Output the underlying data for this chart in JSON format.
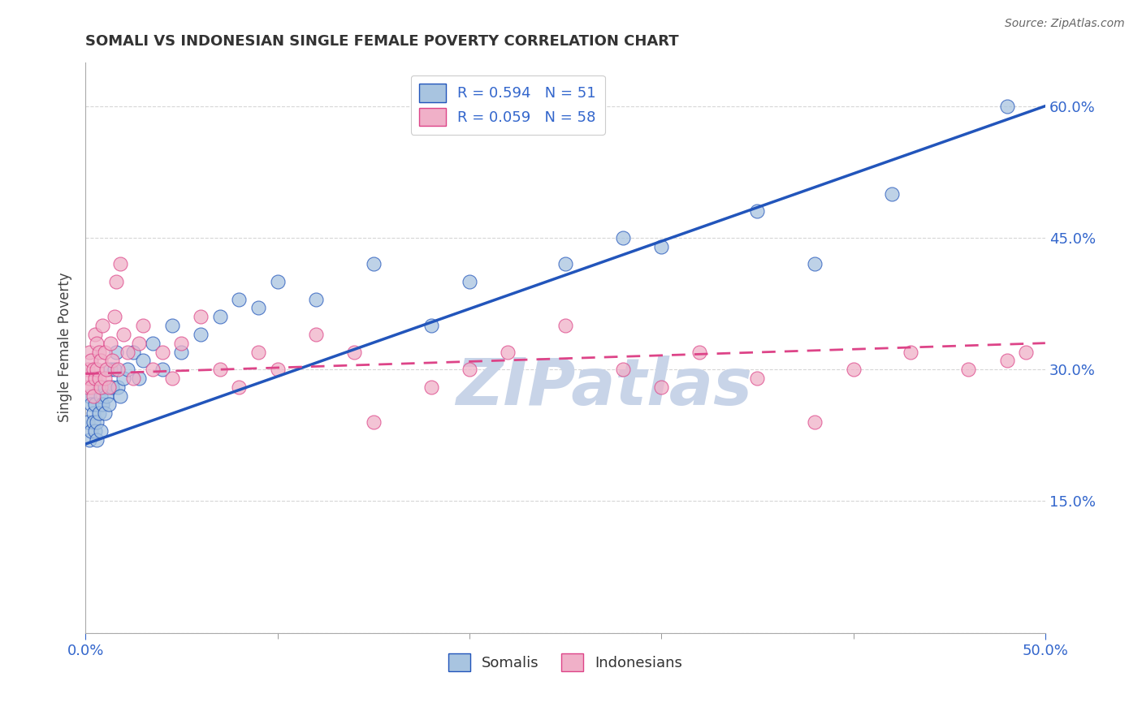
{
  "title": "SOMALI VS INDONESIAN SINGLE FEMALE POVERTY CORRELATION CHART",
  "source": "Source: ZipAtlas.com",
  "ylabel": "Single Female Poverty",
  "xlim": [
    0.0,
    0.5
  ],
  "ylim": [
    0.0,
    0.65
  ],
  "somali_R": 0.594,
  "somali_N": 51,
  "indonesian_R": 0.059,
  "indonesian_N": 58,
  "somali_color": "#a8c4e0",
  "indonesian_color": "#f0b0c8",
  "somali_line_color": "#2255bb",
  "indonesian_line_color": "#dd4488",
  "legend_label_somali": "Somalis",
  "legend_label_indonesian": "Indonesians",
  "background_color": "#ffffff",
  "grid_color": "#cccccc",
  "watermark": "ZIPatlas",
  "watermark_color": "#c8d4e8",
  "somali_x": [
    0.001,
    0.002,
    0.002,
    0.003,
    0.003,
    0.004,
    0.004,
    0.005,
    0.005,
    0.006,
    0.006,
    0.007,
    0.007,
    0.008,
    0.008,
    0.009,
    0.01,
    0.01,
    0.011,
    0.012,
    0.013,
    0.014,
    0.015,
    0.016,
    0.017,
    0.018,
    0.02,
    0.022,
    0.025,
    0.028,
    0.03,
    0.035,
    0.04,
    0.045,
    0.05,
    0.06,
    0.07,
    0.08,
    0.09,
    0.1,
    0.12,
    0.15,
    0.18,
    0.2,
    0.25,
    0.28,
    0.3,
    0.35,
    0.38,
    0.42,
    0.48
  ],
  "somali_y": [
    0.24,
    0.22,
    0.27,
    0.23,
    0.26,
    0.25,
    0.24,
    0.26,
    0.23,
    0.24,
    0.22,
    0.28,
    0.25,
    0.27,
    0.23,
    0.26,
    0.28,
    0.25,
    0.27,
    0.26,
    0.3,
    0.28,
    0.3,
    0.32,
    0.28,
    0.27,
    0.29,
    0.3,
    0.32,
    0.29,
    0.31,
    0.33,
    0.3,
    0.35,
    0.32,
    0.34,
    0.36,
    0.38,
    0.37,
    0.4,
    0.38,
    0.42,
    0.35,
    0.4,
    0.42,
    0.45,
    0.44,
    0.48,
    0.42,
    0.5,
    0.6
  ],
  "indonesian_x": [
    0.001,
    0.001,
    0.002,
    0.002,
    0.003,
    0.003,
    0.004,
    0.004,
    0.005,
    0.005,
    0.006,
    0.006,
    0.007,
    0.007,
    0.008,
    0.008,
    0.009,
    0.01,
    0.01,
    0.011,
    0.012,
    0.013,
    0.014,
    0.015,
    0.016,
    0.017,
    0.018,
    0.02,
    0.022,
    0.025,
    0.028,
    0.03,
    0.035,
    0.04,
    0.045,
    0.05,
    0.06,
    0.07,
    0.08,
    0.09,
    0.1,
    0.12,
    0.14,
    0.15,
    0.18,
    0.2,
    0.22,
    0.25,
    0.28,
    0.3,
    0.32,
    0.35,
    0.38,
    0.4,
    0.43,
    0.46,
    0.48,
    0.49
  ],
  "indonesian_y": [
    0.3,
    0.28,
    0.29,
    0.32,
    0.31,
    0.28,
    0.3,
    0.27,
    0.29,
    0.34,
    0.33,
    0.3,
    0.29,
    0.32,
    0.31,
    0.28,
    0.35,
    0.29,
    0.32,
    0.3,
    0.28,
    0.33,
    0.31,
    0.36,
    0.4,
    0.3,
    0.42,
    0.34,
    0.32,
    0.29,
    0.33,
    0.35,
    0.3,
    0.32,
    0.29,
    0.33,
    0.36,
    0.3,
    0.28,
    0.32,
    0.3,
    0.34,
    0.32,
    0.24,
    0.28,
    0.3,
    0.32,
    0.35,
    0.3,
    0.28,
    0.32,
    0.29,
    0.24,
    0.3,
    0.32,
    0.3,
    0.31,
    0.32
  ],
  "somali_line_y0": 0.215,
  "somali_line_y1": 0.6,
  "indonesian_line_y0": 0.295,
  "indonesian_line_y1": 0.33
}
